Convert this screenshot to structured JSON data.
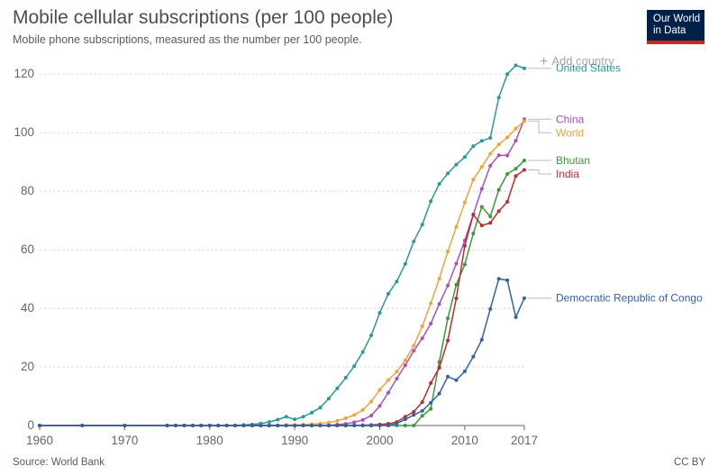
{
  "title": "Mobile cellular subscriptions (per 100 people)",
  "subtitle": "Mobile phone subscriptions, measured as the number per 100 people.",
  "logo": {
    "line1": "Our World",
    "line2": "in Data"
  },
  "add_country": {
    "icon": "plus-icon",
    "label": "Add country"
  },
  "source": "Source: World Bank",
  "license": "CC BY",
  "colors": {
    "axis": "#666666",
    "grid": "#dddddd",
    "text": "#4d4d4d",
    "brand": "#002147",
    "brand_accent": "#ce261e"
  },
  "chart_data": {
    "type": "line",
    "title": "Mobile cellular subscriptions (per 100 people)",
    "subtitle": "Mobile phone subscriptions, measured as the number per 100 people.",
    "xlabel": "",
    "ylabel": "",
    "xlim": [
      1960,
      2017
    ],
    "ylim": [
      0,
      125
    ],
    "x_ticks": [
      "1960",
      "1970",
      "1980",
      "1990",
      "2000",
      "2010",
      "2017"
    ],
    "y_ticks": [
      "0",
      "20",
      "40",
      "60",
      "80",
      "100",
      "120"
    ],
    "grid": "horizontal dashed",
    "legend": "labels at line ends, right",
    "x": [
      1960,
      1965,
      1970,
      1975,
      1976,
      1977,
      1978,
      1979,
      1980,
      1981,
      1982,
      1983,
      1984,
      1985,
      1986,
      1987,
      1988,
      1989,
      1990,
      1991,
      1992,
      1993,
      1994,
      1995,
      1996,
      1997,
      1998,
      1999,
      2000,
      2001,
      2002,
      2003,
      2004,
      2005,
      2006,
      2007,
      2008,
      2009,
      2010,
      2011,
      2012,
      2013,
      2014,
      2015,
      2016,
      2017
    ],
    "series": [
      {
        "name": "United States",
        "color": "#2a9a94",
        "values": [
          0,
          0,
          0,
          0,
          0,
          0,
          0,
          0,
          0,
          0,
          0,
          0.04,
          0.2,
          0.4,
          0.7,
          1.2,
          2.0,
          3.0,
          2.1,
          3.0,
          4.4,
          6.1,
          9.2,
          12.7,
          16.3,
          20.3,
          25.1,
          30.8,
          38.5,
          45.0,
          49.2,
          55.2,
          62.9,
          68.6,
          76.6,
          82.5,
          86.1,
          89.1,
          91.7,
          95.4,
          97.2,
          98.2,
          112.0,
          120.0,
          123.0,
          122.0
        ]
      },
      {
        "name": "China",
        "color": "#a652ba",
        "values": [
          0,
          0,
          0,
          0,
          0,
          0,
          0,
          0,
          0,
          0,
          0,
          0,
          0,
          0,
          0,
          0,
          0,
          0,
          0,
          0,
          0.02,
          0.05,
          0.13,
          0.3,
          0.57,
          1.1,
          1.9,
          3.4,
          6.7,
          11.2,
          16.0,
          20.6,
          25.5,
          29.8,
          34.8,
          41.5,
          47.8,
          55.3,
          63.2,
          72.1,
          80.8,
          88.7,
          92.3,
          92.2,
          97.3,
          104.6
        ]
      },
      {
        "name": "World",
        "color": "#f2a33a",
        "values": [
          0,
          0,
          0,
          0,
          0,
          0,
          0,
          0,
          0,
          0,
          0,
          0,
          0,
          0.01,
          0.02,
          0.04,
          0.08,
          0.14,
          0.2,
          0.3,
          0.45,
          0.7,
          1.0,
          1.6,
          2.5,
          3.6,
          5.3,
          8.2,
          12.2,
          15.5,
          18.4,
          22.3,
          27.3,
          33.9,
          41.7,
          50.1,
          59.4,
          67.8,
          76.2,
          84.0,
          88.3,
          92.8,
          96.0,
          98.4,
          101.4,
          104.0
        ]
      },
      {
        "name": "Bhutan",
        "color": "#3a9a3a",
        "values": [
          0,
          0,
          0,
          0,
          0,
          0,
          0,
          0,
          0,
          0,
          0,
          0,
          0,
          0,
          0,
          0,
          0,
          0,
          0,
          0,
          0,
          0,
          0,
          0,
          0,
          0,
          0,
          0,
          0,
          0,
          0,
          0,
          0,
          3.3,
          5.7,
          21.7,
          36.6,
          48.1,
          55.0,
          65.6,
          74.7,
          71.4,
          80.5,
          85.9,
          87.7,
          90.5
        ]
      },
      {
        "name": "India",
        "color": "#c2282e",
        "values": [
          0,
          0,
          0,
          0,
          0,
          0,
          0,
          0,
          0,
          0,
          0,
          0,
          0,
          0,
          0,
          0,
          0,
          0,
          0,
          0,
          0,
          0,
          0,
          0,
          0.03,
          0.09,
          0.1,
          0.2,
          0.35,
          0.6,
          1.2,
          3.0,
          4.7,
          8.0,
          14.5,
          19.7,
          29.0,
          43.4,
          61.4,
          72.0,
          68.3,
          69.2,
          73.2,
          76.4,
          85.2,
          87.3
        ]
      },
      {
        "name": "Democratic Republic of Congo",
        "color": "#3361a8",
        "values": [
          0,
          0,
          0,
          0,
          0,
          0,
          0,
          0,
          0,
          0,
          0,
          0,
          0,
          0,
          0,
          0,
          0,
          0,
          0,
          0,
          0,
          0,
          0,
          0,
          0,
          0,
          0,
          0,
          0.03,
          0.05,
          0.7,
          2.1,
          3.6,
          5.0,
          7.8,
          10.9,
          16.7,
          15.5,
          18.5,
          23.5,
          29.3,
          39.8,
          50.1,
          49.6,
          37.0,
          43.5
        ]
      }
    ]
  }
}
